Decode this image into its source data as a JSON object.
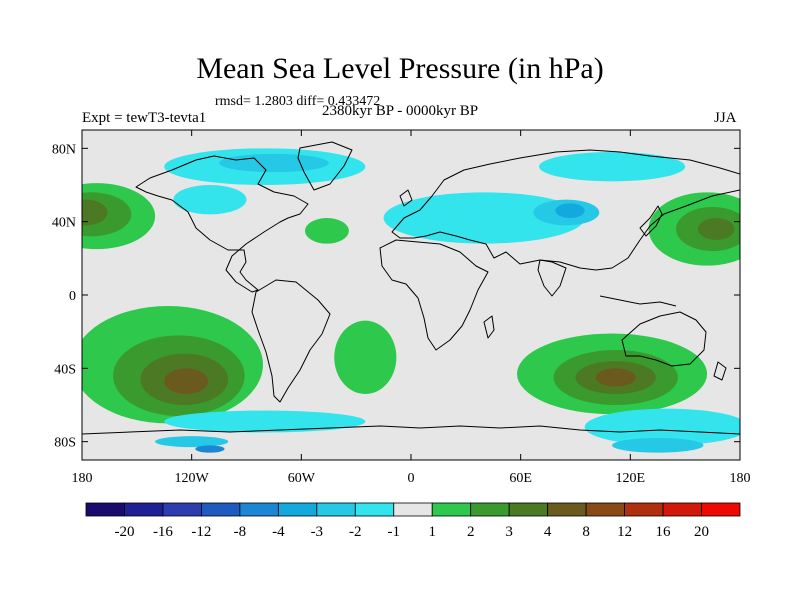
{
  "figure": {
    "title": "Mean Sea Level Pressure (in hPa)",
    "stats": "rmsd= 1.2803 diff= 0.433472",
    "experiment": "Expt = tewT3-tevta1",
    "period": "2380kyr BP - 0000kyr BP",
    "season": "JJA"
  },
  "axes": {
    "lon_ticks": [
      {
        "value": -180,
        "label": "180"
      },
      {
        "value": -120,
        "label": "120W"
      },
      {
        "value": -60,
        "label": "60W"
      },
      {
        "value": 0,
        "label": "0"
      },
      {
        "value": 60,
        "label": "60E"
      },
      {
        "value": 120,
        "label": "120E"
      },
      {
        "value": 180,
        "label": "180"
      }
    ],
    "lat_ticks": [
      {
        "value": 80,
        "label": "80N"
      },
      {
        "value": 40,
        "label": "40N"
      },
      {
        "value": 0,
        "label": "0"
      },
      {
        "value": -40,
        "label": "40S"
      },
      {
        "value": -80,
        "label": "80S"
      }
    ],
    "lon_range": [
      -180,
      180
    ],
    "lat_range": [
      -90,
      90
    ]
  },
  "colorbar": {
    "labels": [
      "-20",
      "-16",
      "-12",
      "-8",
      "-4",
      "-3",
      "-2",
      "-1",
      "1",
      "2",
      "3",
      "4",
      "8",
      "12",
      "16",
      "20"
    ],
    "colors": [
      "#1a0a6e",
      "#1f1f96",
      "#2d3cae",
      "#1e5bbf",
      "#1a86d4",
      "#14a9de",
      "#25c9e6",
      "#33e4ec",
      "#e6e6e6",
      "#2ec84c",
      "#3a9a2e",
      "#4c7a24",
      "#6a5a1e",
      "#8a4a16",
      "#b0300e",
      "#d21808",
      "#ee0a02"
    ]
  },
  "map_regions": [
    {
      "name": "n-pacific-west-high",
      "color": "#2ec84c",
      "center": [
        -172,
        43
      ],
      "radii": [
        32,
        18
      ]
    },
    {
      "name": "n-pacific-west-high-mid",
      "color": "#3a9a2e",
      "center": [
        -175,
        44
      ],
      "radii": [
        22,
        12
      ]
    },
    {
      "name": "n-pacific-west-high-core",
      "color": "#4c7a24",
      "center": [
        -178,
        45
      ],
      "radii": [
        12,
        7
      ]
    },
    {
      "name": "n-pacific-east-high",
      "color": "#2ec84c",
      "center": [
        162,
        36
      ],
      "radii": [
        32,
        20
      ]
    },
    {
      "name": "n-pacific-east-high-mid",
      "color": "#3a9a2e",
      "center": [
        165,
        36
      ],
      "radii": [
        20,
        12
      ]
    },
    {
      "name": "n-pacific-east-high-core",
      "color": "#4c7a24",
      "center": [
        167,
        36
      ],
      "radii": [
        10,
        6
      ]
    },
    {
      "name": "s-pacific-high",
      "color": "#2ec84c",
      "center": [
        -133,
        -38
      ],
      "radii": [
        52,
        32
      ]
    },
    {
      "name": "s-pacific-high-mid",
      "color": "#3a9a2e",
      "center": [
        -127,
        -44
      ],
      "radii": [
        36,
        22
      ]
    },
    {
      "name": "s-pacific-high-inner",
      "color": "#4c7a24",
      "center": [
        -124,
        -46
      ],
      "radii": [
        24,
        14
      ]
    },
    {
      "name": "s-pacific-high-core",
      "color": "#6a5a1e",
      "center": [
        -123,
        -47
      ],
      "radii": [
        12,
        7
      ]
    },
    {
      "name": "indian-ocean-high",
      "color": "#2ec84c",
      "center": [
        110,
        -43
      ],
      "radii": [
        52,
        22
      ]
    },
    {
      "name": "indian-ocean-high-mid",
      "color": "#3a9a2e",
      "center": [
        112,
        -45
      ],
      "radii": [
        34,
        15
      ]
    },
    {
      "name": "indian-ocean-high-inner",
      "color": "#4c7a24",
      "center": [
        112,
        -45
      ],
      "radii": [
        22,
        9
      ]
    },
    {
      "name": "indian-ocean-high-core",
      "color": "#6a5a1e",
      "center": [
        112,
        -45
      ],
      "radii": [
        11,
        5
      ]
    },
    {
      "name": "atlantic-high-north",
      "color": "#2ec84c",
      "center": [
        -46,
        35
      ],
      "radii": [
        12,
        7
      ]
    },
    {
      "name": "atlantic-high-south",
      "color": "#2ec84c",
      "center": [
        -25,
        -34
      ],
      "radii": [
        17,
        20
      ]
    },
    {
      "name": "eurasia-low",
      "color": "#33e4ec",
      "center": [
        40,
        42
      ],
      "radii": [
        55,
        14
      ]
    },
    {
      "name": "eurasia-low-core",
      "color": "#25c9e6",
      "center": [
        85,
        45
      ],
      "radii": [
        18,
        7
      ]
    },
    {
      "name": "eurasia-low-inner",
      "color": "#14a9de",
      "center": [
        87,
        46
      ],
      "radii": [
        8,
        4
      ]
    },
    {
      "name": "arctic-low",
      "color": "#33e4ec",
      "center": [
        -80,
        70
      ],
      "radii": [
        55,
        10
      ]
    },
    {
      "name": "arctic-low-core",
      "color": "#25c9e6",
      "center": [
        -75,
        72
      ],
      "radii": [
        30,
        5
      ]
    },
    {
      "name": "east-siberia-low",
      "color": "#33e4ec",
      "center": [
        110,
        70
      ],
      "radii": [
        40,
        8
      ]
    },
    {
      "name": "western-us-low",
      "color": "#33e4ec",
      "center": [
        -110,
        52
      ],
      "radii": [
        20,
        8
      ]
    },
    {
      "name": "southern-ocean-low-w",
      "color": "#33e4ec",
      "center": [
        -80,
        -69
      ],
      "radii": [
        55,
        6
      ]
    },
    {
      "name": "southern-ocean-low-e",
      "color": "#33e4ec",
      "center": [
        140,
        -72
      ],
      "radii": [
        45,
        10
      ]
    },
    {
      "name": "antarctic-low-core-w",
      "color": "#25c9e6",
      "center": [
        -120,
        -80
      ],
      "radii": [
        20,
        3
      ]
    },
    {
      "name": "antarctic-low-core-e",
      "color": "#25c9e6",
      "center": [
        135,
        -82
      ],
      "radii": [
        25,
        4
      ]
    },
    {
      "name": "antarctic-deep-low",
      "color": "#1a86d4",
      "center": [
        -110,
        -84
      ],
      "radii": [
        8,
        2
      ]
    }
  ]
}
